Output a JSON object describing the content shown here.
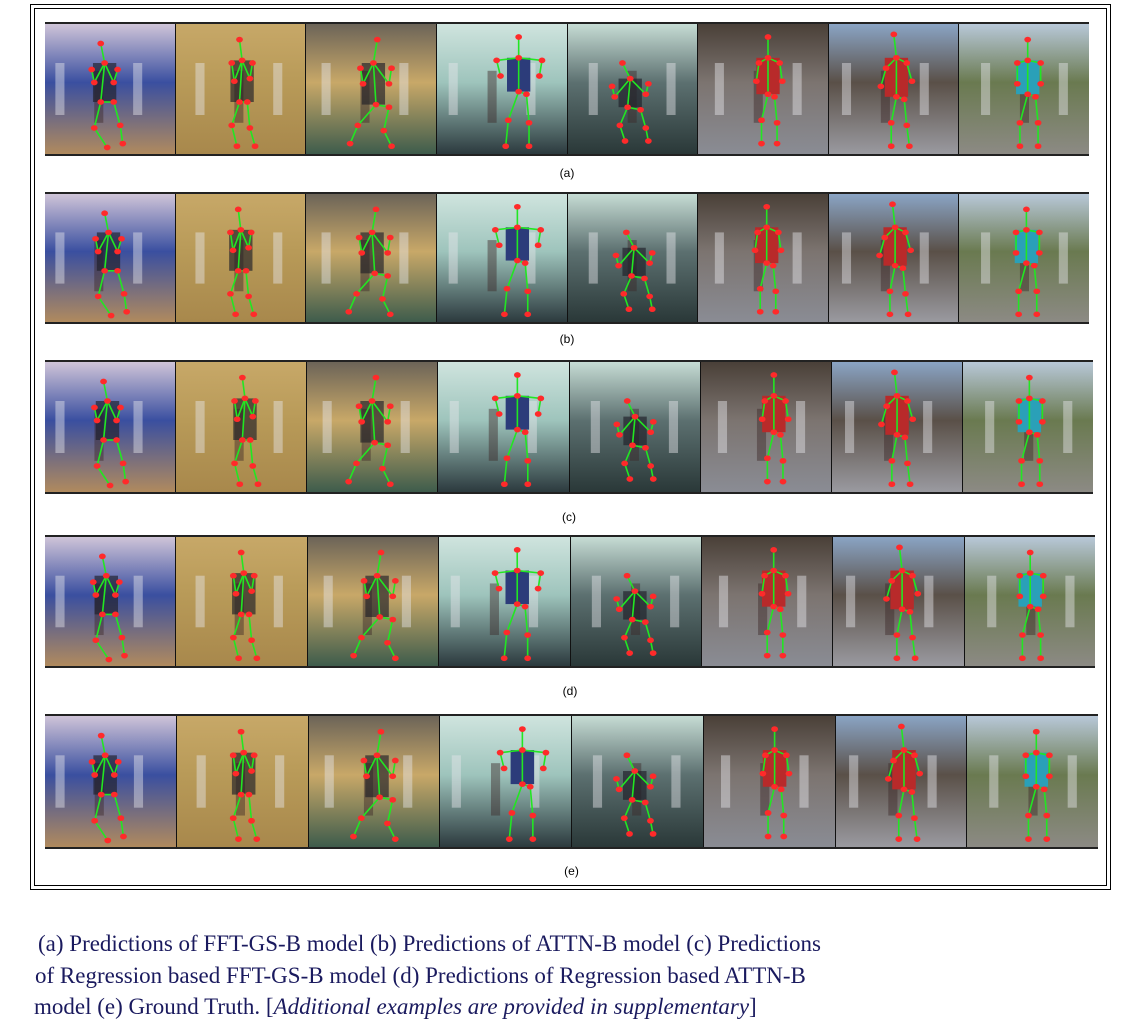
{
  "figure": {
    "rows": [
      {
        "label": "(a)"
      },
      {
        "label": "(b)"
      },
      {
        "label": "(c)"
      },
      {
        "label": "(d)"
      },
      {
        "label": "(e)"
      }
    ],
    "frames": [
      {
        "scene": "volleyball-gym",
        "colors": {
          "top": "#cfc4d8",
          "mid": "#3a4fa0",
          "floor": "#b08a5e"
        }
      },
      {
        "scene": "volleyball-close",
        "colors": {
          "top": "#c7a868",
          "mid": "#b89a58",
          "floor": "#a8884c"
        }
      },
      {
        "scene": "volleyball-court",
        "colors": {
          "top": "#6c6458",
          "mid": "#c8a868",
          "floor": "#3e5c4c"
        }
      },
      {
        "scene": "gym-squat",
        "colors": {
          "top": "#cfe4de",
          "mid": "#9ec4bc",
          "floor": "#2c3a3e"
        }
      },
      {
        "scene": "gym-crouch",
        "colors": {
          "top": "#c6dcd4",
          "mid": "#5c7070",
          "floor": "#2a3838"
        }
      },
      {
        "scene": "street-crowd",
        "colors": {
          "top": "#4a4038",
          "mid": "#7c7470",
          "floor": "#8a8c94"
        }
      },
      {
        "scene": "outdoor-crowd",
        "colors": {
          "top": "#8aa4c4",
          "mid": "#5a5048",
          "floor": "#9a9aa0"
        }
      },
      {
        "scene": "field-crowd",
        "colors": {
          "top": "#b8c8d8",
          "mid": "#6a7a50",
          "floor": "#8c8a84"
        }
      }
    ]
  },
  "caption": {
    "line1": "(a) Predictions of FFT-GS-B model (b) Predictions of ATTN-B model (c) Predictions",
    "line2": "of Regression based FFT-GS-B model (d) Predictions of Regression based ATTN-B",
    "line3_plain": "model (e) Ground Truth. [",
    "line3_italic": "Additional examples are provided in supplementary",
    "line3_end": "]"
  }
}
